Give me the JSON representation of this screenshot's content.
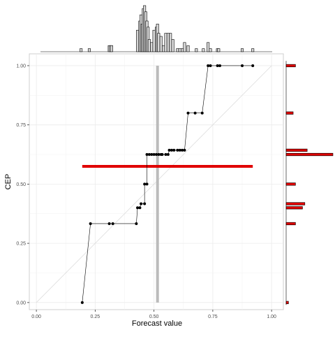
{
  "chart_data": [
    {
      "type": "scatter",
      "title": "",
      "xlabel": "Forecast value",
      "ylabel": "CEP",
      "xlim": [
        -0.03,
        1.05
      ],
      "ylim": [
        -0.03,
        1.05
      ],
      "x_ticks": [
        0.0,
        0.25,
        0.5,
        0.75,
        1.0
      ],
      "y_ticks": [
        0.0,
        0.25,
        0.5,
        0.75,
        1.0
      ],
      "x_tick_labels": [
        "0.00",
        "0.25",
        "0.50",
        "0.75",
        "1.00"
      ],
      "y_tick_labels": [
        "0.00",
        "0.25",
        "0.50",
        "0.75",
        "1.00"
      ],
      "grid": true,
      "series": [
        {
          "kind": "step-line-with-points",
          "color": "#000000",
          "points": [
            [
              0.195,
              0.0
            ],
            [
              0.23,
              0.333
            ],
            [
              0.31,
              0.333
            ],
            [
              0.325,
              0.333
            ],
            [
              0.425,
              0.333
            ],
            [
              0.43,
              0.4
            ],
            [
              0.44,
              0.4
            ],
            [
              0.445,
              0.417
            ],
            [
              0.46,
              0.417
            ],
            [
              0.46,
              0.5
            ],
            [
              0.47,
              0.5
            ],
            [
              0.47,
              0.625
            ],
            [
              0.48,
              0.625
            ],
            [
              0.49,
              0.625
            ],
            [
              0.5,
              0.625
            ],
            [
              0.51,
              0.625
            ],
            [
              0.52,
              0.625
            ],
            [
              0.53,
              0.625
            ],
            [
              0.535,
              0.625
            ],
            [
              0.55,
              0.625
            ],
            [
              0.56,
              0.625
            ],
            [
              0.565,
              0.643
            ],
            [
              0.575,
              0.643
            ],
            [
              0.585,
              0.643
            ],
            [
              0.6,
              0.643
            ],
            [
              0.61,
              0.643
            ],
            [
              0.62,
              0.643
            ],
            [
              0.63,
              0.643
            ],
            [
              0.645,
              0.8
            ],
            [
              0.675,
              0.8
            ],
            [
              0.705,
              0.8
            ],
            [
              0.73,
              1.0
            ],
            [
              0.74,
              1.0
            ],
            [
              0.77,
              1.0
            ],
            [
              0.78,
              1.0
            ],
            [
              0.875,
              1.0
            ],
            [
              0.92,
              1.0
            ]
          ]
        },
        {
          "kind": "diagonal-reference",
          "color": "#dddddd",
          "points": [
            [
              0,
              0
            ],
            [
              1,
              1
            ]
          ]
        },
        {
          "kind": "horizontal-bar",
          "color": "#e00000",
          "y": 0.575,
          "x_range": [
            0.195,
            0.92
          ]
        },
        {
          "kind": "vertical-bar",
          "color": "#bbbbbb",
          "x": 0.515,
          "y_range": [
            0.0,
            1.0
          ]
        }
      ]
    },
    {
      "type": "bar",
      "role": "top-marginal-histogram",
      "orientation": "vertical",
      "fill": "#d9d9d9",
      "bins_x": [
        0.19,
        0.225,
        0.31,
        0.315,
        0.32,
        0.43,
        0.44,
        0.445,
        0.45,
        0.455,
        0.46,
        0.465,
        0.47,
        0.475,
        0.48,
        0.49,
        0.5,
        0.51,
        0.515,
        0.52,
        0.53,
        0.54,
        0.55,
        0.56,
        0.57,
        0.58,
        0.6,
        0.61,
        0.62,
        0.63,
        0.645,
        0.68,
        0.71,
        0.73,
        0.74,
        0.77,
        0.775,
        0.875,
        0.92
      ],
      "counts": [
        1,
        1,
        2,
        2,
        2,
        7,
        10,
        12,
        9,
        14,
        15,
        13,
        10,
        8,
        4,
        3,
        7,
        8,
        9,
        6,
        5,
        2,
        6,
        6,
        6,
        4,
        1,
        1,
        1,
        3,
        2,
        1,
        1,
        3,
        1,
        1,
        1,
        1,
        1
      ]
    },
    {
      "type": "bar",
      "role": "right-marginal-histogram",
      "orientation": "horizontal",
      "fill": "#e00000",
      "bins_y": [
        0.0,
        0.333,
        0.4,
        0.417,
        0.5,
        0.625,
        0.643,
        0.8,
        1.0
      ],
      "counts": [
        1,
        4,
        7,
        8,
        4,
        20,
        9,
        3,
        4
      ]
    }
  ]
}
